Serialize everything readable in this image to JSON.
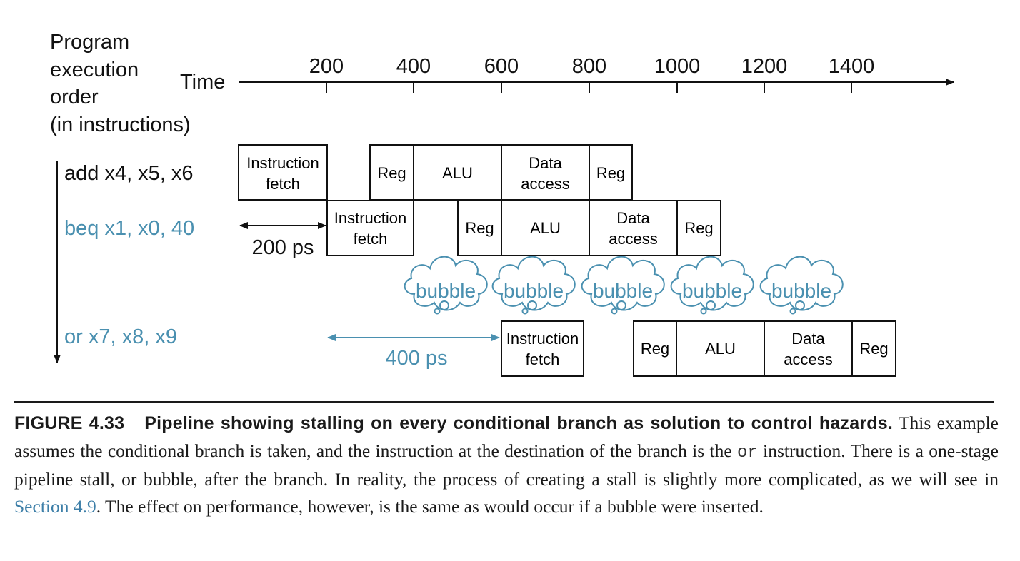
{
  "axis": {
    "y_label_lines": [
      "Program",
      "execution",
      "order",
      "(in instructions)"
    ],
    "time_label": "Time",
    "ticks": [
      "200",
      "400",
      "600",
      "800",
      "1000",
      "1200",
      "1400"
    ]
  },
  "instructions": [
    {
      "text": "add x4, x5, x6",
      "color": "#111111"
    },
    {
      "text": "beq x1, x0, 40",
      "color": "#4a90b0"
    },
    {
      "text": "or x7, x8, x9",
      "color": "#4a90b0"
    }
  ],
  "stages": {
    "fetch_line1": "Instruction",
    "fetch_line2": "fetch",
    "reg": "Reg",
    "alu": "ALU",
    "data_line1": "Data",
    "data_line2": "access"
  },
  "intervals": {
    "first": {
      "label": "200 ps",
      "color": "#111111"
    },
    "second": {
      "label": "400 ps",
      "color": "#4a90b0"
    }
  },
  "bubbles": {
    "label": "bubble",
    "count": 5,
    "color": "#4a90b0"
  },
  "caption": {
    "figure_label": "FIGURE 4.33",
    "figure_title": "Pipeline showing stalling on every conditional branch as solution to control hazards.",
    "text_before_code": " This example assumes the conditional branch is taken, and the instruction at the destination of the branch is the ",
    "code": "or",
    "text_after_code": " instruction. There is a one-stage pipeline stall, or bubble, after the branch. In reality, the process of creating a stall is slightly more complicated, as we will see in ",
    "link": "Section 4.9",
    "text_end": ". The effect on performance, however, is the same as would occur if a bubble were inserted."
  }
}
